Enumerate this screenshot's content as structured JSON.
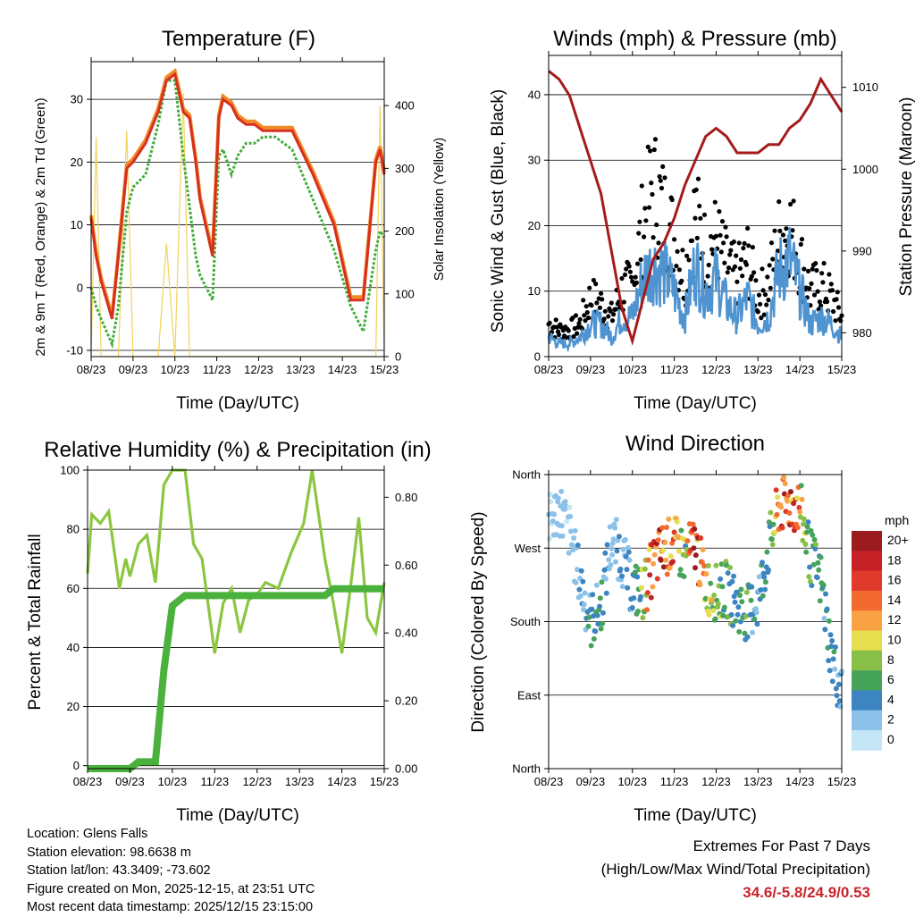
{
  "colors": {
    "t2m": "#d7301f",
    "t9m": "#f08a24",
    "td": "#43ac3d",
    "solar": "#f2d35c",
    "gust": "#000000",
    "wind": "#4f94d0",
    "pressure": "#a51b1b",
    "rh": "#8cc641",
    "rain": "#4bb13d"
  },
  "x_ticks": [
    "08/23",
    "09/23",
    "10/23",
    "11/23",
    "12/23",
    "13/23",
    "14/23",
    "15/23"
  ],
  "chart_data": [
    {
      "id": "temperature",
      "type": "line",
      "title": "Temperature (F)",
      "xlabel": "Time (Day/UTC)",
      "ylabel": "2m & 9m T (Red, Orange) & 2m Td (Green)",
      "y2label": "Solar Insolation (Yellow)",
      "x": [
        0,
        0.12,
        0.24,
        0.5,
        0.65,
        0.85,
        1,
        1.3,
        1.6,
        1.8,
        2,
        2.2,
        2.35,
        2.5,
        2.6,
        2.9,
        3.05,
        3.15,
        3.35,
        3.5,
        3.7,
        3.9,
        4.1,
        4.4,
        4.8,
        5.3,
        5.8,
        6.2,
        6.5,
        6.8,
        6.9,
        7
      ],
      "ylim": [
        -11,
        36
      ],
      "y2lim": [
        0,
        470
      ],
      "yticks": [
        -10,
        0,
        10,
        20,
        30
      ],
      "y2ticks": [
        0,
        100,
        200,
        300,
        400
      ],
      "series": [
        {
          "name": "2m T",
          "values": [
            11,
            5,
            1,
            -5,
            5,
            19,
            20,
            23,
            28,
            33,
            34,
            28,
            27,
            20,
            14,
            5,
            27,
            30,
            29,
            27,
            26,
            26,
            25,
            25,
            25,
            18,
            10,
            -2,
            -2,
            20,
            22,
            18
          ]
        },
        {
          "name": "9m T",
          "values": [
            11.5,
            5.5,
            1.5,
            -4.5,
            5.5,
            19.5,
            20.5,
            23.5,
            28.5,
            33.5,
            34.5,
            28.5,
            27.5,
            20.5,
            14.5,
            5.5,
            27.5,
            30.5,
            29.5,
            27.5,
            26.5,
            26.5,
            25.5,
            25.5,
            25.5,
            18.5,
            10.5,
            -1.5,
            -1.5,
            20.5,
            22.5,
            18.5
          ]
        },
        {
          "name": "2m Td",
          "values": [
            0,
            -3,
            -5,
            -9,
            -3,
            12,
            16,
            18,
            26,
            33,
            33,
            21,
            13,
            5,
            2,
            -2,
            21,
            22,
            18,
            21,
            23,
            23,
            24,
            24,
            22,
            14,
            6,
            -3,
            -7,
            6,
            9,
            8
          ]
        },
        {
          "name": "Solar Insolation",
          "axis": "y2",
          "values": [
            0,
            350,
            0,
            0,
            0,
            360,
            0,
            0,
            0,
            180,
            0,
            420,
            0,
            0,
            0,
            0,
            0,
            0,
            0,
            0,
            0,
            0,
            0,
            0,
            0,
            0,
            0,
            0,
            0,
            0,
            400,
            0
          ]
        }
      ]
    },
    {
      "id": "winds",
      "type": "scatter",
      "title": "Winds (mph) & Pressure (mb)",
      "xlabel": "Time (Day/UTC)",
      "ylabel": "Sonic Wind & Gust (Blue, Black)",
      "y2label": "Station Pressure (Maroon)",
      "x": [
        0,
        0.25,
        0.5,
        0.75,
        1,
        1.25,
        1.5,
        1.75,
        2,
        2.25,
        2.5,
        2.75,
        3,
        3.25,
        3.5,
        3.75,
        4,
        4.25,
        4.5,
        4.75,
        5,
        5.25,
        5.5,
        5.75,
        6,
        6.25,
        6.5,
        6.75,
        7
      ],
      "ylim": [
        0,
        46
      ],
      "y2lim": [
        977.1,
        1013.9
      ],
      "yticks": [
        0,
        10,
        20,
        30,
        40
      ],
      "y2ticks": [
        980,
        990,
        1000,
        1010
      ],
      "series": [
        {
          "name": "Gust",
          "values": [
            5,
            4,
            4,
            5,
            9,
            8,
            6,
            10,
            11,
            20,
            26,
            22,
            18,
            12,
            22,
            16,
            18,
            14,
            12,
            15,
            9,
            11,
            18,
            20,
            15,
            10,
            11,
            9,
            6
          ]
        },
        {
          "name": "Sonic Wind",
          "values": [
            3,
            2,
            2,
            3,
            5,
            5,
            3,
            6,
            6,
            12,
            14,
            13,
            10,
            6,
            14,
            10,
            12,
            8,
            6,
            9,
            5,
            6,
            13,
            15,
            10,
            5,
            6,
            5,
            3
          ]
        },
        {
          "name": "Station Pressure",
          "axis": "y2",
          "values": [
            1012,
            1011,
            1009,
            1005,
            1001,
            997,
            990,
            983,
            979,
            984,
            989,
            991,
            994,
            998,
            1001,
            1004,
            1005,
            1004,
            1002,
            1002,
            1002,
            1003,
            1003,
            1005,
            1006,
            1008,
            1011,
            1009,
            1007
          ]
        }
      ]
    },
    {
      "id": "humidity",
      "type": "line",
      "title": "Relative Humidity (%) & Precipitation (in)",
      "xlabel": "Time (Day/UTC)",
      "ylabel": "Percent & Total Rainfall",
      "x": [
        0,
        0.1,
        0.3,
        0.5,
        0.75,
        0.9,
        1,
        1.2,
        1.4,
        1.6,
        1.8,
        2,
        2.3,
        2.5,
        2.7,
        3,
        3.2,
        3.4,
        3.6,
        3.8,
        4,
        4.2,
        4.5,
        4.8,
        5.1,
        5.3,
        5.6,
        5.8,
        6,
        6.2,
        6.4,
        6.6,
        6.8,
        7
      ],
      "ylim": [
        -1,
        100
      ],
      "y2lim": [
        0,
        0.88
      ],
      "yticks": [
        0,
        20,
        40,
        60,
        80,
        100
      ],
      "y2ticks": [
        0,
        0.2,
        0.4,
        0.6,
        0.8
      ],
      "y2ticklabels": [
        "0.00",
        "0.20",
        "0.40",
        "0.60",
        "0.80"
      ],
      "series": [
        {
          "name": "Relative Humidity",
          "values": [
            65,
            85,
            82,
            86,
            60,
            70,
            64,
            75,
            78,
            62,
            95,
            100,
            100,
            75,
            70,
            38,
            55,
            60,
            45,
            56,
            58,
            62,
            60,
            72,
            82,
            100,
            70,
            55,
            38,
            60,
            84,
            50,
            45,
            62
          ]
        },
        {
          "name": "Total Precipitation",
          "axis": "y2",
          "values": [
            0,
            0,
            0,
            0,
            0,
            0,
            0,
            0.02,
            0.02,
            0.02,
            0.29,
            0.48,
            0.51,
            0.51,
            0.51,
            0.51,
            0.51,
            0.51,
            0.51,
            0.51,
            0.51,
            0.51,
            0.51,
            0.51,
            0.51,
            0.51,
            0.51,
            0.53,
            0.53,
            0.53,
            0.53,
            0.53,
            0.53,
            0.53
          ]
        }
      ]
    },
    {
      "id": "direction",
      "type": "scatter",
      "title": "Wind Direction",
      "xlabel": "Time (Day/UTC)",
      "ylabel": "Direction (Colored By Speed)",
      "x": [
        0,
        0.25,
        0.5,
        0.75,
        1,
        1.25,
        1.5,
        1.75,
        2,
        2.25,
        2.5,
        2.75,
        3,
        3.25,
        3.5,
        3.75,
        4,
        4.25,
        4.5,
        4.75,
        5,
        5.25,
        5.5,
        5.75,
        6,
        6.25,
        6.5,
        6.75,
        7
      ],
      "ylim": [
        0,
        360
      ],
      "ytick_values": [
        0,
        90,
        180,
        270,
        360
      ],
      "ytick_labels": [
        "North",
        "East",
        "South",
        "West",
        "North"
      ],
      "series": [
        {
          "name": "Direction (deg)",
          "values": [
            300,
            320,
            290,
            230,
            180,
            200,
            280,
            260,
            220,
            215,
            250,
            270,
            275,
            260,
            275,
            225,
            215,
            220,
            200,
            190,
            205,
            270,
            320,
            325,
            320,
            260,
            230,
            140,
            90
          ]
        },
        {
          "name": "Speed (mph)",
          "values": [
            1,
            2,
            1,
            3,
            4,
            5,
            2,
            3,
            3,
            9,
            16,
            18,
            13,
            7,
            19,
            9,
            8,
            6,
            5,
            6,
            3,
            5,
            14,
            17,
            12,
            6,
            5,
            4,
            3
          ]
        }
      ],
      "colorbar": {
        "label": "mph",
        "levels": [
          "20+",
          "18",
          "16",
          "14",
          "12",
          "10",
          "8",
          "6",
          "4",
          "2",
          "0"
        ],
        "colors": [
          "#9a1c1f",
          "#c62127",
          "#e03a2c",
          "#f26a2f",
          "#f8a244",
          "#e5de4e",
          "#88bf48",
          "#46a35a",
          "#3c85c1",
          "#8cc2ea",
          "#c4e6f6"
        ]
      }
    }
  ],
  "meta": {
    "location": "Location: Glens Falls",
    "elevation": "Station elevation: 98.6638 m",
    "latlon": "Station lat/lon: 43.3409; -73.602",
    "created": "Figure created on Mon, 2025-12-15, at 23:51 UTC",
    "recent": "Most recent data timestamp: 2025/12/15 23:15:00"
  },
  "extremes": {
    "heading": "Extremes For Past 7 Days",
    "subheading": "(High/Low/Max Wind/Total Precipitation)",
    "value": "34.6/-5.8/24.9/0.53"
  }
}
